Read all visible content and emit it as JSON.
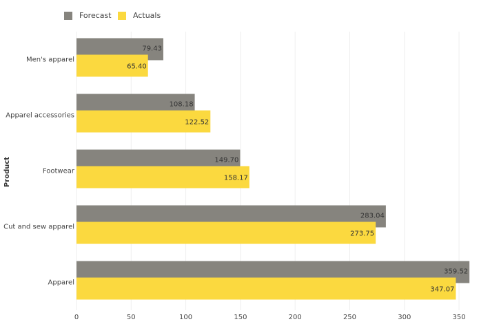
{
  "chart_data": {
    "type": "barh",
    "y_label": "Product",
    "categories": [
      "Men's apparel",
      "Apparel accessories",
      "Footwear",
      "Cut and sew apparel",
      "Apparel"
    ],
    "series": [
      {
        "name": "Forecast",
        "color": "#86847e",
        "values": [
          79.43,
          108.18,
          149.7,
          283.04,
          359.52
        ],
        "value_labels": [
          "79.43",
          "108.18",
          "149.70",
          "283.04",
          "359.52"
        ]
      },
      {
        "name": "Actuals",
        "color": "#fbd93f",
        "values": [
          65.4,
          122.52,
          158.17,
          273.75,
          347.07
        ],
        "value_labels": [
          "65.40",
          "122.52",
          "158.17",
          "273.75",
          "347.07"
        ]
      }
    ],
    "xlim": [
      0,
      370
    ],
    "xticks": [
      0,
      50,
      100,
      150,
      200,
      250,
      300,
      350
    ],
    "grid": true
  }
}
